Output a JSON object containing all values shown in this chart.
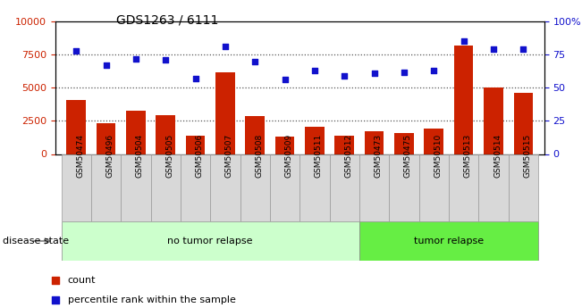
{
  "title": "GDS1263 / 6111",
  "samples": [
    "GSM50474",
    "GSM50496",
    "GSM50504",
    "GSM50505",
    "GSM50506",
    "GSM50507",
    "GSM50508",
    "GSM50509",
    "GSM50511",
    "GSM50512",
    "GSM50473",
    "GSM50475",
    "GSM50510",
    "GSM50513",
    "GSM50514",
    "GSM50515"
  ],
  "counts": [
    4100,
    2300,
    3300,
    2950,
    1350,
    6200,
    2850,
    1300,
    2050,
    1350,
    1700,
    1600,
    1900,
    8200,
    5000,
    4650
  ],
  "percentile": [
    78,
    67,
    72,
    71,
    57,
    81,
    70,
    56,
    63,
    59,
    61,
    62,
    63,
    85,
    79,
    79
  ],
  "bar_color": "#cc2200",
  "dot_color": "#1111cc",
  "left_ylim": [
    0,
    10000
  ],
  "right_ylim": [
    0,
    100
  ],
  "left_yticks": [
    0,
    2500,
    5000,
    7500,
    10000
  ],
  "right_yticks": [
    0,
    25,
    50,
    75,
    100
  ],
  "right_yticklabels": [
    "0",
    "25",
    "50",
    "75",
    "100%"
  ],
  "groups": [
    {
      "label": "no tumor relapse",
      "start": 0,
      "end": 10,
      "color": "#ccffcc"
    },
    {
      "label": "tumor relapse",
      "start": 10,
      "end": 16,
      "color": "#66ee44"
    }
  ],
  "legend_count": "count",
  "legend_pct": "percentile rank within the sample",
  "disease_state_label": "disease state",
  "dotted_line_color": "#555555",
  "bar_width": 0.65,
  "plot_bg": "#ffffff",
  "xtick_bg": "#d8d8d8"
}
